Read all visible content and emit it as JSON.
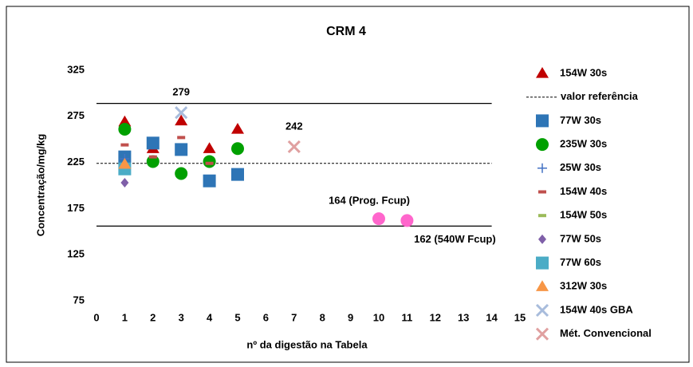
{
  "chart_data": {
    "type": "scatter",
    "title": "CRM 4",
    "xlabel": "nº da digestão na Tabela",
    "ylabel": "Concentração/mg/kg",
    "xlim": [
      0,
      15
    ],
    "xticks": [
      0,
      1,
      2,
      3,
      4,
      5,
      6,
      7,
      8,
      9,
      10,
      11,
      12,
      13,
      14,
      15
    ],
    "ylim": [
      75,
      325
    ],
    "yticks": [
      75,
      125,
      175,
      225,
      275,
      325
    ],
    "lines": [
      {
        "name": "valor referência",
        "y": 224,
        "x": [
          0,
          14
        ],
        "style": "dashed",
        "color": "#000"
      },
      {
        "y": 289,
        "x": [
          0,
          14
        ],
        "style": "solid",
        "color": "#000"
      },
      {
        "y": 156,
        "x": [
          0,
          14
        ],
        "style": "solid",
        "color": "#000"
      }
    ],
    "series": [
      {
        "name": "154W 30s",
        "marker": "triangle",
        "color": "#c00000",
        "x": [
          1,
          2,
          3,
          4,
          5
        ],
        "y": [
          269,
          240,
          270,
          240,
          261
        ]
      },
      {
        "name": "77W 30s",
        "marker": "square",
        "color": "#2e75b6",
        "x": [
          1,
          2,
          3,
          4,
          5
        ],
        "y": [
          231,
          246,
          239,
          205,
          212
        ]
      },
      {
        "name": "235W 30s",
        "marker": "circle",
        "color": "#00a000",
        "x": [
          1,
          2,
          3,
          4,
          5
        ],
        "y": [
          261,
          226,
          213,
          226,
          240
        ]
      },
      {
        "name": "25W 30s",
        "marker": "plus",
        "color": "#4472c4",
        "x": [
          1
        ],
        "y": [
          229
        ]
      },
      {
        "name": "154W 40s",
        "marker": "dash",
        "color": "#c0504d",
        "x": [
          1,
          2,
          3,
          4
        ],
        "y": [
          244,
          231,
          252,
          224
        ]
      },
      {
        "name": "154W 50s",
        "marker": "dash",
        "color": "#9bbb59",
        "x": [],
        "y": []
      },
      {
        "name": "77W 50s",
        "marker": "diamond",
        "color": "#7f5fa8",
        "x": [
          1
        ],
        "y": [
          203
        ]
      },
      {
        "name": "77W 60s",
        "marker": "square",
        "color": "#4bacc6",
        "x": [
          1
        ],
        "y": [
          218
        ]
      },
      {
        "name": "312W 30s",
        "marker": "triangle",
        "color": "#f79646",
        "x": [
          1
        ],
        "y": [
          223
        ]
      },
      {
        "name": "154W 40s GBA",
        "marker": "x",
        "color": "#a8bcdc",
        "x": [
          3
        ],
        "y": [
          279
        ],
        "labeled": true
      },
      {
        "name": "Mét. Convencional",
        "marker": "x",
        "color": "#e0a0a0",
        "x": [
          7
        ],
        "y": [
          242
        ],
        "labeled": true
      }
    ],
    "points": [
      {
        "x": 10,
        "y": 164,
        "label": "164 (Prog. Fcup)",
        "color": "#ff66cc",
        "label_pos": "above"
      },
      {
        "x": 11,
        "y": 162,
        "label": "162 (540W Fcup)",
        "color": "#ff66cc",
        "label_pos": "below"
      }
    ]
  }
}
